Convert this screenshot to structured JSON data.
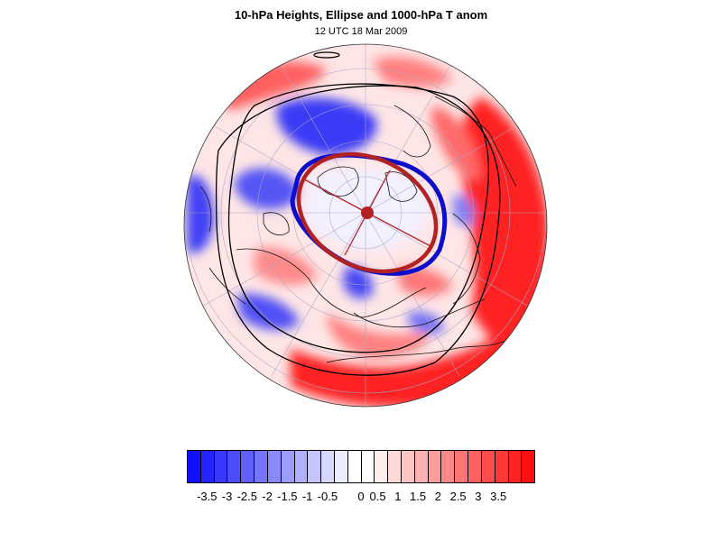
{
  "figure": {
    "title": "10-hPa Heights, Ellipse and 1000-hPa T anom",
    "subtitle": "12 UTC 18 Mar 2009"
  },
  "colors": {
    "cold": "#1414f0",
    "warm": "#ff1a1a",
    "ellipse": "#b22222",
    "vortex_edge": "#0d0dcc"
  },
  "colorbar": {
    "labels": [
      "-3.5",
      "-3",
      "-2.5",
      "-2",
      "-1.5",
      "-1",
      "-0.5",
      "0",
      "0.5",
      "1",
      "1.5",
      "2",
      "2.5",
      "3",
      "3.5"
    ],
    "colors": [
      "#1010ff",
      "#2424ff",
      "#3838ff",
      "#4c4cff",
      "#6060ff",
      "#7474ff",
      "#8888ff",
      "#9c9cff",
      "#b0b0ff",
      "#c4c4ff",
      "#d8d8ff",
      "#ececff",
      "#ffffff",
      "#ffffff",
      "#ffecec",
      "#ffd8d8",
      "#ffc4c4",
      "#ffb0b0",
      "#ff9c9c",
      "#ff8888",
      "#ff7474",
      "#ff6060",
      "#ff4c4c",
      "#ff3838",
      "#ff2424",
      "#ff1010"
    ]
  }
}
